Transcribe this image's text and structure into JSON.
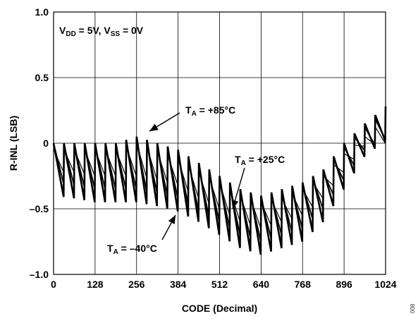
{
  "chart_data": {
    "type": "line",
    "xlabel": "CODE (Decimal)",
    "ylabel": "R-INL (LSB)",
    "xlim": [
      0,
      1024
    ],
    "ylim": [
      -1.0,
      1.0
    ],
    "x_ticks": [
      0,
      128,
      256,
      384,
      512,
      640,
      768,
      896,
      1024
    ],
    "y_ticks": [
      1.0,
      0.5,
      0,
      -0.5,
      -1.0
    ],
    "x_tick_labels": [
      "0",
      "128",
      "256",
      "384",
      "512",
      "640",
      "768",
      "896",
      "1024"
    ],
    "y_tick_labels": [
      "1.0",
      "0.5",
      "0",
      "–0.5",
      "–1.0"
    ],
    "grid": true,
    "conditions": {
      "main1": "V",
      "sub1": "DD",
      "rest1": " = 5V, V",
      "sub2": "SS",
      "rest2": " = 0V"
    },
    "annotations": [
      {
        "main": "T",
        "sub": "A",
        "rest": " = +85°C"
      },
      {
        "main": "T",
        "sub": "A",
        "rest": " = +25°C"
      },
      {
        "main": "T",
        "sub": "A",
        "rest": " = –40°C"
      }
    ],
    "figure_id": "008",
    "sawtooth_period": 32,
    "series": [
      {
        "x": [
          0,
          64,
          128,
          192,
          256,
          320,
          384,
          448,
          512,
          576,
          640,
          704,
          768,
          832,
          896,
          960,
          1024
        ],
        "peaks": [
          0.0,
          0.0,
          0.0,
          0.0,
          0.05,
          0.0,
          -0.05,
          -0.15,
          -0.25,
          -0.35,
          -0.4,
          -0.35,
          -0.3,
          -0.2,
          0.0,
          0.15,
          0.28
        ],
        "troughs": [
          -0.4,
          -0.42,
          -0.45,
          -0.45,
          -0.45,
          -0.48,
          -0.52,
          -0.6,
          -0.7,
          -0.8,
          -0.85,
          -0.8,
          -0.75,
          -0.6,
          -0.35,
          -0.1,
          0.02
        ]
      },
      {
        "x": [
          0,
          64,
          128,
          192,
          256,
          320,
          384,
          448,
          512,
          576,
          640,
          704,
          768,
          832,
          896,
          960,
          1024
        ],
        "peaks": [
          0.0,
          -0.02,
          -0.02,
          -0.02,
          0.02,
          -0.03,
          -0.08,
          -0.18,
          -0.28,
          -0.38,
          -0.42,
          -0.38,
          -0.32,
          -0.22,
          -0.03,
          0.12,
          0.25
        ],
        "troughs": [
          -0.3,
          -0.32,
          -0.35,
          -0.35,
          -0.35,
          -0.38,
          -0.42,
          -0.52,
          -0.6,
          -0.7,
          -0.75,
          -0.7,
          -0.65,
          -0.5,
          -0.28,
          -0.05,
          0.03
        ]
      },
      {
        "x": [
          0,
          64,
          128,
          192,
          256,
          320,
          384,
          448,
          512,
          576,
          640,
          704,
          768,
          832,
          896,
          960,
          1024
        ],
        "peaks": [
          -0.05,
          -0.05,
          -0.05,
          -0.05,
          0.0,
          -0.06,
          -0.12,
          -0.22,
          -0.3,
          -0.4,
          -0.45,
          -0.42,
          -0.35,
          -0.25,
          -0.08,
          0.05,
          0.2
        ],
        "troughs": [
          -0.22,
          -0.22,
          -0.25,
          -0.25,
          -0.25,
          -0.28,
          -0.32,
          -0.42,
          -0.5,
          -0.6,
          -0.65,
          -0.6,
          -0.55,
          -0.42,
          -0.22,
          -0.02,
          0.0
        ]
      }
    ]
  }
}
